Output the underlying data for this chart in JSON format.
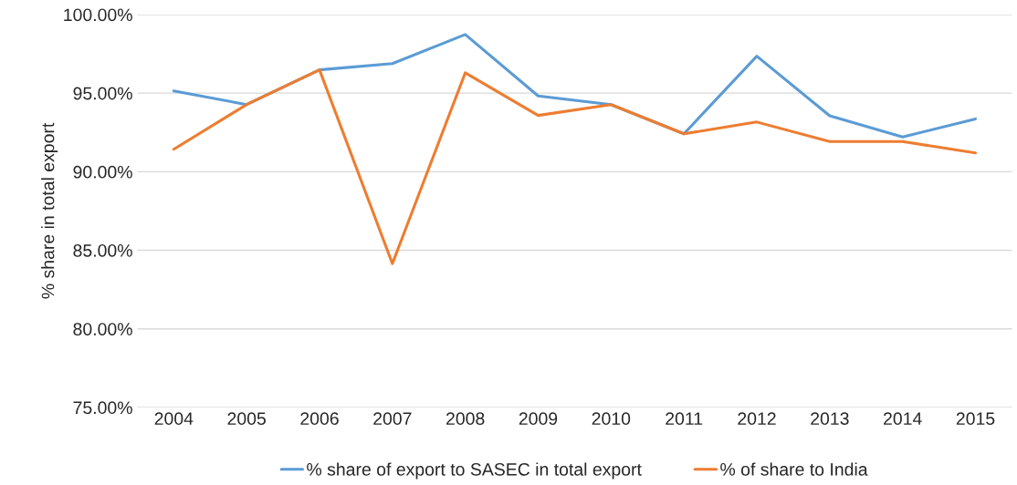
{
  "chart_data": {
    "type": "line",
    "ylabel": "% share in total export",
    "categories": [
      "2004",
      "2005",
      "2006",
      "2007",
      "2008",
      "2009",
      "2010",
      "2011",
      "2012",
      "2013",
      "2014",
      "2015"
    ],
    "series": [
      {
        "name": "% share of export to SASEC in total export",
        "color": "#5b9bd5",
        "values": [
          95.14,
          94.27,
          96.48,
          96.88,
          98.73,
          94.82,
          94.27,
          92.41,
          97.35,
          93.56,
          92.21,
          93.36
        ]
      },
      {
        "name": "% of share to India",
        "color": "#ed7d31",
        "values": [
          91.43,
          94.27,
          96.48,
          84.15,
          96.29,
          93.58,
          94.27,
          92.41,
          93.16,
          91.92,
          91.92,
          91.19
        ]
      }
    ],
    "ylim": [
      75,
      100
    ],
    "yticks": [
      {
        "value": 75,
        "label": "75.00%"
      },
      {
        "value": 80,
        "label": "80.00%"
      },
      {
        "value": 85,
        "label": "85.00%"
      },
      {
        "value": 90,
        "label": "90.00%"
      },
      {
        "value": 95,
        "label": "95.00%"
      },
      {
        "value": 100,
        "label": "100.00%"
      }
    ],
    "grid": "y",
    "legend": "bottom",
    "marker": "none",
    "line_style": "solid"
  }
}
